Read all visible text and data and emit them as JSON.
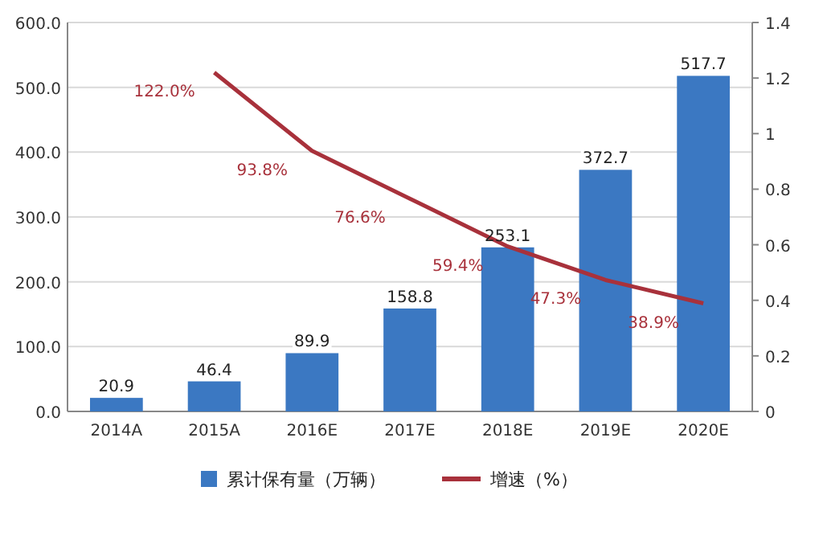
{
  "chart_data": {
    "type": "bar",
    "categories": [
      "2014A",
      "2015A",
      "2016E",
      "2017E",
      "2018E",
      "2019E",
      "2020E"
    ],
    "series": [
      {
        "name": "累计保有量（万辆）",
        "color": "#3b78c2",
        "values": [
          20.9,
          46.4,
          89.9,
          158.8,
          253.1,
          372.7,
          517.7
        ],
        "value_labels": [
          "20.9",
          "46.4",
          "89.9",
          "158.8",
          "253.1",
          "372.7",
          "517.7"
        ]
      },
      {
        "name": "增速（%）",
        "type": "line",
        "axis": "y2",
        "color": "#a8313b",
        "values": [
          null,
          1.22,
          0.938,
          0.766,
          0.594,
          0.473,
          0.389
        ],
        "value_labels": [
          null,
          "122.0%",
          "93.8%",
          "76.6%",
          "59.4%",
          "47.3%",
          "38.9%"
        ]
      }
    ],
    "ylim": [
      0,
      600
    ],
    "yticks": [
      {
        "value": 0,
        "label": "0.0"
      },
      {
        "value": 100,
        "label": "100.0"
      },
      {
        "value": 200,
        "label": "200.0"
      },
      {
        "value": 300,
        "label": "300.0"
      },
      {
        "value": 400,
        "label": "400.0"
      },
      {
        "value": 500,
        "label": "500.0"
      },
      {
        "value": 600,
        "label": "600.0"
      }
    ],
    "y2lim": [
      0,
      1.4
    ],
    "y2ticks": [
      0,
      0.2,
      0.4,
      0.6,
      0.8,
      1,
      1.2,
      1.4
    ],
    "grid": "y",
    "legend": "bottom"
  }
}
